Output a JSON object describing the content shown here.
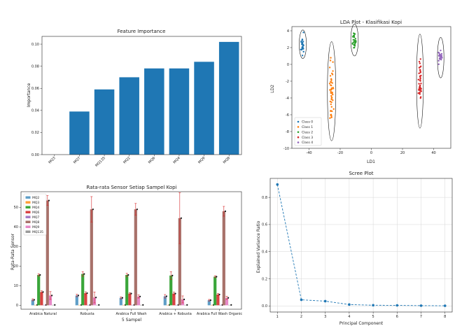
{
  "chart_data": [
    {
      "id": "feature_importance",
      "type": "bar",
      "title": "Feature Importance",
      "xlabel": "",
      "ylabel": "Importance",
      "categories": [
        "MQ3",
        "MQ7",
        "MQ135",
        "MQ2",
        "MQ6",
        "MQ4",
        "MQ9",
        "MQ8"
      ],
      "values": [
        0.0,
        0.039,
        0.059,
        0.07,
        0.078,
        0.078,
        0.084,
        0.102
      ],
      "ylim": [
        0,
        0.107
      ],
      "yticks": [
        0.0,
        0.02,
        0.04,
        0.06,
        0.08,
        0.1
      ],
      "yticklabels": [
        "0.00",
        "0.02",
        "0.04",
        "0.06",
        "0.08",
        "0.10"
      ],
      "color": "#1f77b4",
      "grid": false
    },
    {
      "id": "lda_plot",
      "type": "scatter",
      "title": "LDA Plot - Klasifikasi Kopi",
      "xlabel": "LD1",
      "ylabel": "LD2",
      "xlim": [
        -51,
        51
      ],
      "ylim": [
        -10,
        4.5
      ],
      "xticks": [
        -40,
        -20,
        0,
        20,
        40
      ],
      "yticks": [
        -10,
        -8,
        -6,
        -4,
        -2,
        0,
        2,
        4
      ],
      "legend_position": "bottom-left",
      "series": [
        {
          "name": "Class 0",
          "color": "#1f77b4",
          "cx": -44,
          "cy": 2.4,
          "sx": 0.8,
          "sy": 0.8,
          "ell_rx": 2.3,
          "ell_ry": 1.7,
          "n": 26
        },
        {
          "name": "Class 1",
          "color": "#ff7f0e",
          "cx": -25.5,
          "cy": -3.2,
          "sx": 0.8,
          "sy": 2.6,
          "ell_rx": 2.7,
          "ell_ry": 5.9,
          "n": 48
        },
        {
          "name": "Class 2",
          "color": "#2ca02c",
          "cx": -10.8,
          "cy": 2.9,
          "sx": 0.9,
          "sy": 0.6,
          "ell_rx": 2.4,
          "ell_ry": 1.9,
          "n": 30
        },
        {
          "name": "Class 3",
          "color": "#d62728",
          "cx": 31.2,
          "cy": -2.0,
          "sx": 0.7,
          "sy": 1.6,
          "ell_rx": 2.2,
          "ell_ry": 5.6,
          "n": 40
        },
        {
          "name": "Class 4",
          "color": "#9467bd",
          "cx": 44.5,
          "cy": 0.8,
          "sx": 0.8,
          "sy": 0.6,
          "ell_rx": 2.1,
          "ell_ry": 2.4,
          "n": 26
        }
      ]
    },
    {
      "id": "sensor_means",
      "type": "bar",
      "title": "Rata-rata Sensor Setiap Sampel Kopi",
      "xlabel": "5 Sampel",
      "ylabel": "Rata-Rata Sensor",
      "categories": [
        "Arabica Natural",
        "Robusta",
        "Arabica Full Wash",
        "Arabica + Robusta",
        "Arabica Full Wash Organic"
      ],
      "ylim": [
        -2,
        58
      ],
      "yticks": [
        0,
        10,
        20,
        30,
        40,
        50
      ],
      "legend_position": "top-left",
      "series": [
        {
          "name": "MQ2",
          "color": "#5f9ec7",
          "values": [
            2.8,
            5.0,
            3.8,
            4.6,
            2.6
          ],
          "err": [
            0.5,
            0.6,
            0.5,
            0.9,
            0.4
          ]
        },
        {
          "name": "MQ3",
          "color": "#ff9f3a",
          "values": [
            0.2,
            0.2,
            0.2,
            0.2,
            0.2
          ],
          "err": [
            0,
            0,
            0,
            0,
            0
          ]
        },
        {
          "name": "MQ4",
          "color": "#3aa63a",
          "values": [
            15.5,
            16.0,
            15.5,
            15.2,
            14.6
          ],
          "err": [
            0.6,
            1.2,
            0.8,
            2.0,
            0.5
          ]
        },
        {
          "name": "MQ6",
          "color": "#d94343",
          "values": [
            6.8,
            6.2,
            6.0,
            6.0,
            5.5
          ],
          "err": [
            0.6,
            0.7,
            0.5,
            0.8,
            0.6
          ]
        },
        {
          "name": "MQ7",
          "color": "#a47bc6",
          "values": [
            0.2,
            0.2,
            0.2,
            0.2,
            0.2
          ],
          "err": [
            0,
            0,
            0,
            0,
            0
          ]
        },
        {
          "name": "MQ8",
          "color": "#a8716a",
          "values": [
            53.5,
            49.0,
            49.0,
            44.5,
            48.0
          ],
          "err": [
            2.5,
            6.5,
            3.0,
            13.0,
            2.5
          ]
        },
        {
          "name": "MQ9",
          "color": "#e688c7",
          "values": [
            5.0,
            4.0,
            4.5,
            3.0,
            3.8
          ],
          "err": [
            2.0,
            2.8,
            0.8,
            1.8,
            0.8
          ]
        },
        {
          "name": "MQ135",
          "color": "#9a9a9a",
          "values": [
            0.2,
            0.2,
            0.2,
            0.2,
            0.2
          ],
          "err": [
            0,
            0,
            0,
            0,
            0
          ]
        }
      ],
      "grid": false
    },
    {
      "id": "scree_plot",
      "type": "line",
      "title": "Scree Plot",
      "xlabel": "Principal Component",
      "ylabel": "Explained Variance Ratio",
      "x": [
        1,
        2,
        3,
        4,
        5,
        6,
        7,
        8
      ],
      "y": [
        0.895,
        0.045,
        0.035,
        0.01,
        0.005,
        0.004,
        0.002,
        0.001
      ],
      "xlim": [
        0.7,
        8.3
      ],
      "ylim": [
        -0.045,
        0.94
      ],
      "xticks": [
        1,
        2,
        3,
        4,
        5,
        6,
        7,
        8
      ],
      "yticks": [
        0.0,
        0.2,
        0.4,
        0.6,
        0.8
      ],
      "yticklabels": [
        "0.0",
        "0.2",
        "0.4",
        "0.6",
        "0.8"
      ],
      "line_style": "dashed",
      "color": "#1f77b4",
      "grid": true
    }
  ]
}
